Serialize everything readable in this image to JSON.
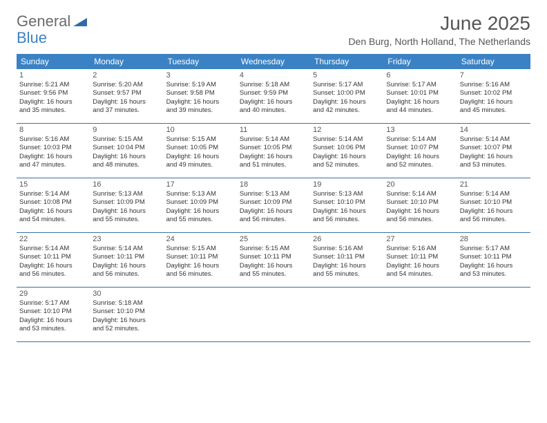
{
  "logo": {
    "text_gray": "General",
    "text_blue": "Blue"
  },
  "title": "June 2025",
  "location": "Den Burg, North Holland, The Netherlands",
  "colors": {
    "header_bg": "#3b82c4",
    "header_text": "#ffffff",
    "border": "#3b6fa0",
    "body_text": "#333333",
    "muted": "#555555",
    "background": "#ffffff"
  },
  "weekdays": [
    "Sunday",
    "Monday",
    "Tuesday",
    "Wednesday",
    "Thursday",
    "Friday",
    "Saturday"
  ],
  "weeks": [
    [
      {
        "n": "1",
        "sr": "Sunrise: 5:21 AM",
        "ss": "Sunset: 9:56 PM",
        "d1": "Daylight: 16 hours",
        "d2": "and 35 minutes."
      },
      {
        "n": "2",
        "sr": "Sunrise: 5:20 AM",
        "ss": "Sunset: 9:57 PM",
        "d1": "Daylight: 16 hours",
        "d2": "and 37 minutes."
      },
      {
        "n": "3",
        "sr": "Sunrise: 5:19 AM",
        "ss": "Sunset: 9:58 PM",
        "d1": "Daylight: 16 hours",
        "d2": "and 39 minutes."
      },
      {
        "n": "4",
        "sr": "Sunrise: 5:18 AM",
        "ss": "Sunset: 9:59 PM",
        "d1": "Daylight: 16 hours",
        "d2": "and 40 minutes."
      },
      {
        "n": "5",
        "sr": "Sunrise: 5:17 AM",
        "ss": "Sunset: 10:00 PM",
        "d1": "Daylight: 16 hours",
        "d2": "and 42 minutes."
      },
      {
        "n": "6",
        "sr": "Sunrise: 5:17 AM",
        "ss": "Sunset: 10:01 PM",
        "d1": "Daylight: 16 hours",
        "d2": "and 44 minutes."
      },
      {
        "n": "7",
        "sr": "Sunrise: 5:16 AM",
        "ss": "Sunset: 10:02 PM",
        "d1": "Daylight: 16 hours",
        "d2": "and 45 minutes."
      }
    ],
    [
      {
        "n": "8",
        "sr": "Sunrise: 5:16 AM",
        "ss": "Sunset: 10:03 PM",
        "d1": "Daylight: 16 hours",
        "d2": "and 47 minutes."
      },
      {
        "n": "9",
        "sr": "Sunrise: 5:15 AM",
        "ss": "Sunset: 10:04 PM",
        "d1": "Daylight: 16 hours",
        "d2": "and 48 minutes."
      },
      {
        "n": "10",
        "sr": "Sunrise: 5:15 AM",
        "ss": "Sunset: 10:05 PM",
        "d1": "Daylight: 16 hours",
        "d2": "and 49 minutes."
      },
      {
        "n": "11",
        "sr": "Sunrise: 5:14 AM",
        "ss": "Sunset: 10:05 PM",
        "d1": "Daylight: 16 hours",
        "d2": "and 51 minutes."
      },
      {
        "n": "12",
        "sr": "Sunrise: 5:14 AM",
        "ss": "Sunset: 10:06 PM",
        "d1": "Daylight: 16 hours",
        "d2": "and 52 minutes."
      },
      {
        "n": "13",
        "sr": "Sunrise: 5:14 AM",
        "ss": "Sunset: 10:07 PM",
        "d1": "Daylight: 16 hours",
        "d2": "and 52 minutes."
      },
      {
        "n": "14",
        "sr": "Sunrise: 5:14 AM",
        "ss": "Sunset: 10:07 PM",
        "d1": "Daylight: 16 hours",
        "d2": "and 53 minutes."
      }
    ],
    [
      {
        "n": "15",
        "sr": "Sunrise: 5:14 AM",
        "ss": "Sunset: 10:08 PM",
        "d1": "Daylight: 16 hours",
        "d2": "and 54 minutes."
      },
      {
        "n": "16",
        "sr": "Sunrise: 5:13 AM",
        "ss": "Sunset: 10:09 PM",
        "d1": "Daylight: 16 hours",
        "d2": "and 55 minutes."
      },
      {
        "n": "17",
        "sr": "Sunrise: 5:13 AM",
        "ss": "Sunset: 10:09 PM",
        "d1": "Daylight: 16 hours",
        "d2": "and 55 minutes."
      },
      {
        "n": "18",
        "sr": "Sunrise: 5:13 AM",
        "ss": "Sunset: 10:09 PM",
        "d1": "Daylight: 16 hours",
        "d2": "and 56 minutes."
      },
      {
        "n": "19",
        "sr": "Sunrise: 5:13 AM",
        "ss": "Sunset: 10:10 PM",
        "d1": "Daylight: 16 hours",
        "d2": "and 56 minutes."
      },
      {
        "n": "20",
        "sr": "Sunrise: 5:14 AM",
        "ss": "Sunset: 10:10 PM",
        "d1": "Daylight: 16 hours",
        "d2": "and 56 minutes."
      },
      {
        "n": "21",
        "sr": "Sunrise: 5:14 AM",
        "ss": "Sunset: 10:10 PM",
        "d1": "Daylight: 16 hours",
        "d2": "and 56 minutes."
      }
    ],
    [
      {
        "n": "22",
        "sr": "Sunrise: 5:14 AM",
        "ss": "Sunset: 10:11 PM",
        "d1": "Daylight: 16 hours",
        "d2": "and 56 minutes."
      },
      {
        "n": "23",
        "sr": "Sunrise: 5:14 AM",
        "ss": "Sunset: 10:11 PM",
        "d1": "Daylight: 16 hours",
        "d2": "and 56 minutes."
      },
      {
        "n": "24",
        "sr": "Sunrise: 5:15 AM",
        "ss": "Sunset: 10:11 PM",
        "d1": "Daylight: 16 hours",
        "d2": "and 56 minutes."
      },
      {
        "n": "25",
        "sr": "Sunrise: 5:15 AM",
        "ss": "Sunset: 10:11 PM",
        "d1": "Daylight: 16 hours",
        "d2": "and 55 minutes."
      },
      {
        "n": "26",
        "sr": "Sunrise: 5:16 AM",
        "ss": "Sunset: 10:11 PM",
        "d1": "Daylight: 16 hours",
        "d2": "and 55 minutes."
      },
      {
        "n": "27",
        "sr": "Sunrise: 5:16 AM",
        "ss": "Sunset: 10:11 PM",
        "d1": "Daylight: 16 hours",
        "d2": "and 54 minutes."
      },
      {
        "n": "28",
        "sr": "Sunrise: 5:17 AM",
        "ss": "Sunset: 10:11 PM",
        "d1": "Daylight: 16 hours",
        "d2": "and 53 minutes."
      }
    ],
    [
      {
        "n": "29",
        "sr": "Sunrise: 5:17 AM",
        "ss": "Sunset: 10:10 PM",
        "d1": "Daylight: 16 hours",
        "d2": "and 53 minutes."
      },
      {
        "n": "30",
        "sr": "Sunrise: 5:18 AM",
        "ss": "Sunset: 10:10 PM",
        "d1": "Daylight: 16 hours",
        "d2": "and 52 minutes."
      },
      null,
      null,
      null,
      null,
      null
    ]
  ]
}
